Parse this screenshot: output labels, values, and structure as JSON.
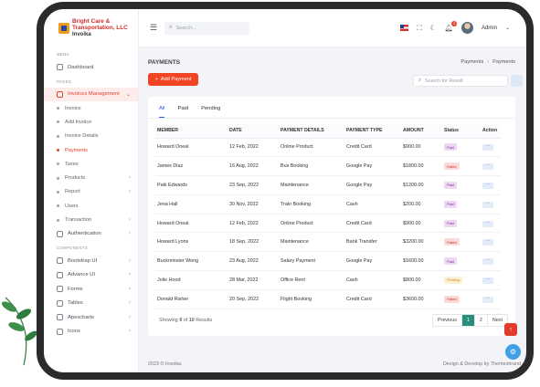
{
  "brand": {
    "line1": "Bright Care &",
    "line2": "Transportation, LLC",
    "line3": "Invoika"
  },
  "sidebar": {
    "section_menu": "MENU",
    "dashboard": "Dashboard",
    "section_pages": "PAGES",
    "invoices_mgmt": "Invoices Management",
    "sub": [
      "Invoice",
      "Add Invoice",
      "Invoice Details",
      "Payments",
      "Taxes",
      "Products",
      "Report",
      "Users",
      "Transaction"
    ],
    "authentication": "Authentication",
    "section_components": "COMPONENTS",
    "components": [
      "Bootstrap UI",
      "Advance UI",
      "Forms",
      "Tables",
      "Apexcharts",
      "Icons"
    ]
  },
  "topbar": {
    "search_placeholder": "Search...",
    "notif_count": "3",
    "user_name": "Admin"
  },
  "page": {
    "title": "PAYMENTS",
    "breadcrumb": [
      "Payments",
      "Payments"
    ],
    "add_button": "Add Payment",
    "search_placeholder": "Search for Result",
    "tabs": [
      "All",
      "Paid",
      "Pending"
    ],
    "columns": [
      "MEMBER",
      "DATE",
      "PAYMENT DETAILS",
      "PAYMENT TYPE",
      "AMOUNT",
      "Status",
      "Action"
    ],
    "rows": [
      {
        "member": "Howard Oneal",
        "date": "12 Feb, 2022",
        "details": "Online Product",
        "type": "Credit Card",
        "amount": "$900.00",
        "status": "Paid"
      },
      {
        "member": "James Diaz",
        "date": "16 Aug, 2022",
        "details": "Bus Booking",
        "type": "Google Pay",
        "amount": "$1800.00",
        "status": "Failed"
      },
      {
        "member": "Paki Edwards",
        "date": "23 Sep, 2022",
        "details": "Maintenance",
        "type": "Google Pay",
        "amount": "$1200.00",
        "status": "Paid"
      },
      {
        "member": "Jena Hall",
        "date": "30 Nov, 2022",
        "details": "Train Booking",
        "type": "Cash",
        "amount": "$200.00",
        "status": "Paid"
      },
      {
        "member": "Howard Oneal",
        "date": "12 Feb, 2022",
        "details": "Online Product",
        "type": "Credit Card",
        "amount": "$900.00",
        "status": "Paid"
      },
      {
        "member": "Howard Lyons",
        "date": "18 Sep, 2022",
        "details": "Maintenance",
        "type": "Bank Transfer",
        "amount": "$3200.00",
        "status": "Failed"
      },
      {
        "member": "Buckminster Wong",
        "date": "23 Aug, 2022",
        "details": "Salary Payment",
        "type": "Google Pay",
        "amount": "$1600.00",
        "status": "Paid"
      },
      {
        "member": "Jolie Hood",
        "date": "28 Mar, 2022",
        "details": "Office Rent",
        "type": "Cash",
        "amount": "$800.00",
        "status": "Pending"
      },
      {
        "member": "Donald Risher",
        "date": "20 Sep, 2022",
        "details": "Flight Booking",
        "type": "Credit Card",
        "amount": "$3600.00",
        "status": "Failed"
      }
    ],
    "action_label": "···",
    "showing": {
      "prefix": "Showing",
      "count": "9",
      "of": "of",
      "total": "10",
      "suffix": "Results"
    },
    "pager": [
      "Previous",
      "1",
      "2",
      "Next"
    ]
  },
  "footer": {
    "copyright": "2023 © Invoika.",
    "credit": "Design & Develop by Themesbrand"
  },
  "colors": {
    "accent": "#f04424",
    "active_tab": "#2e5fd6",
    "page_active": "#2a8e7c"
  }
}
